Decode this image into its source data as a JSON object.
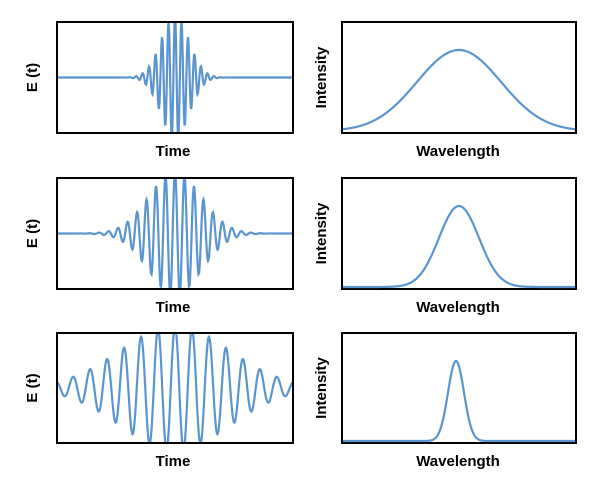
{
  "rows": [
    {
      "time_panel": {
        "y_label": "E (t)",
        "x_label": "Time"
      },
      "spectrum_panel": {
        "y_label": "Intensity",
        "x_label": "Wavelength"
      }
    },
    {
      "time_panel": {
        "y_label": "E (t)",
        "x_label": "Time"
      },
      "spectrum_panel": {
        "y_label": "Intensity",
        "x_label": "Wavelength"
      }
    },
    {
      "time_panel": {
        "y_label": "E (t)",
        "x_label": "Time"
      },
      "spectrum_panel": {
        "y_label": "Intensity",
        "x_label": "Wavelength"
      }
    }
  ]
}
